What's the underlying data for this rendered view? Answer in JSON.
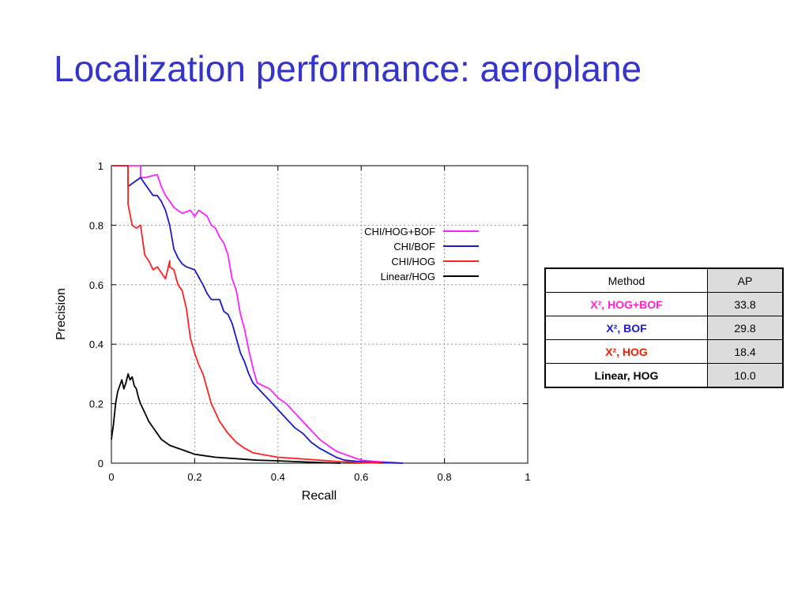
{
  "slide": {
    "title": "Localization performance: aeroplane"
  },
  "table": {
    "headers": [
      "Method",
      "AP"
    ],
    "rows": [
      {
        "method": "X², HOG+BOF",
        "ap": "33.8",
        "color": "#ff22cc"
      },
      {
        "method": "X², BOF",
        "ap": "29.8",
        "color": "#1a1acc"
      },
      {
        "method": "X², HOG",
        "ap": "18.4",
        "color": "#ee2200"
      },
      {
        "method": "Linear, HOG",
        "ap": "10.0",
        "color": "#000000"
      }
    ]
  },
  "chart_data": {
    "type": "line",
    "xlabel": "Recall",
    "ylabel": "Precision",
    "xlim": [
      0,
      1
    ],
    "ylim": [
      0,
      1
    ],
    "xticks": [
      "0",
      "0.2",
      "0.4",
      "0.6",
      "0.8",
      "1"
    ],
    "yticks": [
      "0",
      "0.2",
      "0.4",
      "0.6",
      "0.8",
      "1"
    ],
    "grid": true,
    "legend_position": "top-right",
    "series": [
      {
        "name": "CHI/HOG+BOF",
        "color": "#ff22ff",
        "x": [
          0,
          0.01,
          0.02,
          0.07,
          0.07,
          0.08,
          0.11,
          0.12,
          0.13,
          0.14,
          0.15,
          0.17,
          0.19,
          0.2,
          0.21,
          0.23,
          0.24,
          0.25,
          0.26,
          0.27,
          0.28,
          0.29,
          0.3,
          0.31,
          0.32,
          0.33,
          0.34,
          0.35,
          0.38,
          0.4,
          0.42,
          0.44,
          0.46,
          0.48,
          0.5,
          0.52,
          0.54,
          0.56,
          0.58,
          0.6,
          0.64,
          0.68,
          0.7
        ],
        "y": [
          1,
          1,
          1,
          1,
          0.96,
          0.96,
          0.97,
          0.93,
          0.9,
          0.88,
          0.86,
          0.84,
          0.85,
          0.83,
          0.85,
          0.83,
          0.8,
          0.79,
          0.76,
          0.74,
          0.7,
          0.62,
          0.58,
          0.5,
          0.45,
          0.38,
          0.32,
          0.27,
          0.25,
          0.22,
          0.2,
          0.17,
          0.14,
          0.11,
          0.08,
          0.06,
          0.04,
          0.03,
          0.02,
          0.01,
          0.005,
          0.002,
          0
        ]
      },
      {
        "name": "CHI/BOF",
        "color": "#1a1acc",
        "x": [
          0,
          0.02,
          0.04,
          0.04,
          0.05,
          0.07,
          0.09,
          0.1,
          0.11,
          0.12,
          0.13,
          0.14,
          0.15,
          0.16,
          0.17,
          0.18,
          0.2,
          0.22,
          0.23,
          0.24,
          0.26,
          0.27,
          0.28,
          0.29,
          0.3,
          0.31,
          0.32,
          0.33,
          0.34,
          0.36,
          0.38,
          0.4,
          0.42,
          0.44,
          0.46,
          0.48,
          0.5,
          0.52,
          0.54,
          0.56,
          0.6,
          0.64,
          0.7
        ],
        "y": [
          1,
          1,
          1,
          0.93,
          0.94,
          0.96,
          0.92,
          0.9,
          0.9,
          0.88,
          0.85,
          0.8,
          0.72,
          0.69,
          0.67,
          0.66,
          0.65,
          0.6,
          0.57,
          0.55,
          0.55,
          0.51,
          0.5,
          0.47,
          0.42,
          0.37,
          0.34,
          0.3,
          0.27,
          0.24,
          0.21,
          0.18,
          0.15,
          0.12,
          0.1,
          0.07,
          0.05,
          0.035,
          0.02,
          0.01,
          0.005,
          0.002,
          0
        ]
      },
      {
        "name": "CHI/HOG",
        "color": "#ff2222",
        "x": [
          0,
          0.01,
          0.02,
          0.04,
          0.04,
          0.05,
          0.06,
          0.07,
          0.08,
          0.09,
          0.1,
          0.11,
          0.12,
          0.13,
          0.14,
          0.14,
          0.15,
          0.16,
          0.17,
          0.18,
          0.19,
          0.2,
          0.21,
          0.22,
          0.23,
          0.24,
          0.25,
          0.26,
          0.28,
          0.3,
          0.32,
          0.34,
          0.36,
          0.4,
          0.45,
          0.5,
          0.55,
          0.6,
          0.65
        ],
        "y": [
          1,
          1,
          1,
          1,
          0.87,
          0.8,
          0.79,
          0.8,
          0.7,
          0.68,
          0.65,
          0.66,
          0.64,
          0.62,
          0.68,
          0.66,
          0.65,
          0.6,
          0.58,
          0.52,
          0.42,
          0.37,
          0.33,
          0.3,
          0.25,
          0.2,
          0.17,
          0.14,
          0.1,
          0.07,
          0.05,
          0.035,
          0.03,
          0.02,
          0.015,
          0.01,
          0.005,
          0.002,
          0
        ]
      },
      {
        "name": "Linear/HOG",
        "color": "#000000",
        "x": [
          0,
          0.005,
          0.01,
          0.015,
          0.02,
          0.025,
          0.03,
          0.035,
          0.04,
          0.045,
          0.05,
          0.055,
          0.06,
          0.065,
          0.07,
          0.08,
          0.09,
          0.1,
          0.11,
          0.12,
          0.14,
          0.16,
          0.18,
          0.2,
          0.25,
          0.3,
          0.35,
          0.4,
          0.45,
          0.5,
          0.55
        ],
        "y": [
          0.08,
          0.13,
          0.2,
          0.24,
          0.26,
          0.28,
          0.25,
          0.27,
          0.3,
          0.28,
          0.29,
          0.26,
          0.25,
          0.22,
          0.2,
          0.17,
          0.14,
          0.12,
          0.1,
          0.08,
          0.06,
          0.05,
          0.04,
          0.03,
          0.02,
          0.015,
          0.01,
          0.008,
          0.005,
          0.002,
          0
        ]
      }
    ]
  }
}
